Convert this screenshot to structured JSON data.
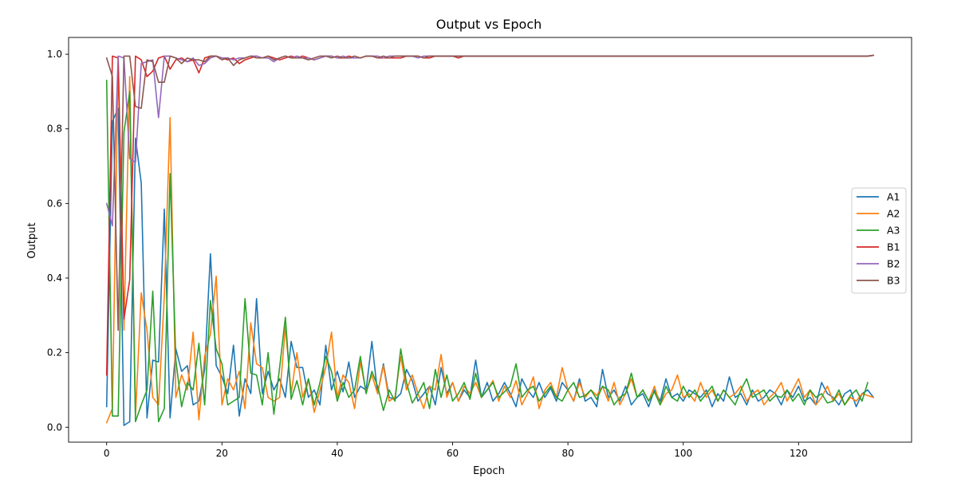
{
  "chart_data": {
    "type": "line",
    "title": "Output vs Epoch",
    "xlabel": "Epoch",
    "ylabel": "Output",
    "xlim": [
      -6.6,
      139.6
    ],
    "ylim": [
      -0.04,
      1.045
    ],
    "xticks": [
      0,
      20,
      40,
      60,
      80,
      100,
      120
    ],
    "yticks": [
      0.0,
      0.2,
      0.4,
      0.6,
      0.8,
      1.0
    ],
    "xtick_labels": [
      "0",
      "20",
      "40",
      "60",
      "80",
      "100",
      "120"
    ],
    "ytick_labels": [
      "0.0",
      "0.2",
      "0.4",
      "0.6",
      "0.8",
      "1.0"
    ],
    "grid": false,
    "legend_position": "center-right",
    "x_start": 0,
    "x_step": 1,
    "series": [
      {
        "name": "A1",
        "color": "#1f77b4",
        "values": [
          0.055,
          0.82,
          0.855,
          0.005,
          0.015,
          0.775,
          0.655,
          0.025,
          0.18,
          0.175,
          0.585,
          0.025,
          0.21,
          0.15,
          0.165,
          0.06,
          0.07,
          0.155,
          0.465,
          0.165,
          0.135,
          0.09,
          0.22,
          0.03,
          0.13,
          0.09,
          0.345,
          0.09,
          0.15,
          0.1,
          0.13,
          0.08,
          0.23,
          0.16,
          0.16,
          0.08,
          0.1,
          0.06,
          0.22,
          0.1,
          0.15,
          0.095,
          0.175,
          0.08,
          0.11,
          0.1,
          0.23,
          0.09,
          0.17,
          0.08,
          0.075,
          0.09,
          0.155,
          0.125,
          0.07,
          0.09,
          0.11,
          0.06,
          0.16,
          0.09,
          0.12,
          0.07,
          0.1,
          0.08,
          0.18,
          0.08,
          0.12,
          0.07,
          0.09,
          0.12,
          0.09,
          0.055,
          0.13,
          0.1,
          0.08,
          0.12,
          0.08,
          0.105,
          0.07,
          0.12,
          0.1,
          0.07,
          0.13,
          0.07,
          0.08,
          0.055,
          0.155,
          0.08,
          0.1,
          0.07,
          0.11,
          0.06,
          0.08,
          0.09,
          0.055,
          0.1,
          0.07,
          0.13,
          0.08,
          0.09,
          0.07,
          0.1,
          0.09,
          0.08,
          0.1,
          0.055,
          0.09,
          0.07,
          0.135,
          0.08,
          0.09,
          0.06,
          0.1,
          0.07,
          0.08,
          0.1,
          0.09,
          0.06,
          0.1,
          0.08,
          0.11,
          0.07,
          0.08,
          0.06,
          0.12,
          0.09,
          0.08,
          0.06,
          0.09,
          0.1,
          0.055,
          0.09,
          0.1,
          0.08
        ]
      },
      {
        "name": "A2",
        "color": "#ff7f0e",
        "values": [
          0.012,
          0.05,
          0.98,
          0.26,
          0.94,
          0.03,
          0.36,
          0.26,
          0.08,
          0.06,
          0.35,
          0.83,
          0.08,
          0.14,
          0.1,
          0.255,
          0.02,
          0.19,
          0.25,
          0.405,
          0.06,
          0.13,
          0.1,
          0.15,
          0.05,
          0.28,
          0.17,
          0.16,
          0.08,
          0.07,
          0.08,
          0.27,
          0.09,
          0.2,
          0.08,
          0.13,
          0.04,
          0.1,
          0.16,
          0.255,
          0.08,
          0.14,
          0.12,
          0.05,
          0.175,
          0.095,
          0.14,
          0.09,
          0.165,
          0.07,
          0.08,
          0.19,
          0.1,
          0.14,
          0.09,
          0.05,
          0.11,
          0.1,
          0.195,
          0.08,
          0.12,
          0.07,
          0.11,
          0.09,
          0.12,
          0.08,
          0.1,
          0.125,
          0.07,
          0.11,
          0.08,
          0.125,
          0.06,
          0.09,
          0.135,
          0.05,
          0.1,
          0.12,
          0.08,
          0.16,
          0.1,
          0.07,
          0.12,
          0.08,
          0.1,
          0.085,
          0.11,
          0.07,
          0.12,
          0.06,
          0.09,
          0.13,
          0.08,
          0.1,
          0.07,
          0.11,
          0.06,
          0.09,
          0.1,
          0.14,
          0.08,
          0.09,
          0.07,
          0.12,
          0.08,
          0.1,
          0.07,
          0.1,
          0.08,
          0.09,
          0.11,
          0.07,
          0.09,
          0.1,
          0.06,
          0.08,
          0.095,
          0.12,
          0.07,
          0.1,
          0.13,
          0.08,
          0.1,
          0.06,
          0.08,
          0.11,
          0.07,
          0.09,
          0.06,
          0.08,
          0.07,
          0.09,
          0.085,
          0.08
        ]
      },
      {
        "name": "A3",
        "color": "#2ca02c",
        "values": [
          0.93,
          0.03,
          0.03,
          0.79,
          0.9,
          0.015,
          0.06,
          0.1,
          0.365,
          0.015,
          0.05,
          0.68,
          0.18,
          0.055,
          0.12,
          0.1,
          0.225,
          0.06,
          0.34,
          0.21,
          0.17,
          0.06,
          0.07,
          0.08,
          0.345,
          0.145,
          0.14,
          0.06,
          0.2,
          0.035,
          0.16,
          0.295,
          0.075,
          0.125,
          0.06,
          0.13,
          0.06,
          0.12,
          0.19,
          0.15,
          0.07,
          0.12,
          0.08,
          0.1,
          0.19,
          0.09,
          0.15,
          0.11,
          0.045,
          0.1,
          0.07,
          0.21,
          0.12,
          0.065,
          0.09,
          0.12,
          0.05,
          0.155,
          0.08,
          0.14,
          0.07,
          0.09,
          0.12,
          0.075,
          0.145,
          0.08,
          0.1,
          0.12,
          0.08,
          0.095,
          0.11,
          0.17,
          0.08,
          0.1,
          0.11,
          0.07,
          0.09,
          0.11,
          0.08,
          0.07,
          0.1,
          0.12,
          0.08,
          0.085,
          0.1,
          0.075,
          0.11,
          0.1,
          0.06,
          0.08,
          0.09,
          0.145,
          0.08,
          0.1,
          0.07,
          0.095,
          0.06,
          0.11,
          0.08,
          0.07,
          0.11,
          0.08,
          0.1,
          0.07,
          0.09,
          0.11,
          0.07,
          0.1,
          0.08,
          0.06,
          0.1,
          0.13,
          0.08,
          0.09,
          0.1,
          0.07,
          0.085,
          0.08,
          0.1,
          0.07,
          0.09,
          0.06,
          0.1,
          0.08,
          0.09,
          0.065,
          0.07,
          0.1,
          0.06,
          0.085,
          0.1,
          0.07,
          0.12
        ]
      },
      {
        "name": "B1",
        "color": "#d62728",
        "values": [
          0.14,
          0.995,
          0.99,
          0.29,
          0.395,
          0.995,
          0.985,
          0.94,
          0.955,
          0.99,
          0.995,
          0.96,
          0.985,
          0.99,
          0.98,
          0.985,
          0.95,
          0.99,
          0.995,
          0.995,
          0.99,
          0.985,
          0.99,
          0.975,
          0.985,
          0.99,
          0.995,
          0.99,
          0.995,
          0.99,
          0.985,
          0.99,
          0.995,
          0.99,
          0.995,
          0.99,
          0.985,
          0.99,
          0.995,
          0.995,
          0.99,
          0.99,
          0.995,
          0.99,
          0.99,
          0.995,
          0.995,
          0.99,
          0.99,
          0.99,
          0.99,
          0.99,
          0.995,
          0.995,
          0.995,
          0.99,
          0.99,
          0.995,
          0.995,
          0.995,
          0.995,
          0.99,
          0.995,
          0.995,
          0.995,
          0.995,
          0.995,
          0.995,
          0.995,
          0.995,
          0.995,
          0.995,
          0.995,
          0.995,
          0.995,
          0.995,
          0.995,
          0.995,
          0.995,
          0.995,
          0.995,
          0.995,
          0.995,
          0.995,
          0.995,
          0.995,
          0.995,
          0.995,
          0.995,
          0.995,
          0.995,
          0.995,
          0.995,
          0.995,
          0.995,
          0.995,
          0.995,
          0.995,
          0.995,
          0.995,
          0.995,
          0.995,
          0.995,
          0.995,
          0.995,
          0.995,
          0.995,
          0.995,
          0.995,
          0.995,
          0.995,
          0.995,
          0.995,
          0.995,
          0.995,
          0.995,
          0.995,
          0.995,
          0.995,
          0.995,
          0.995,
          0.995,
          0.995,
          0.995,
          0.995,
          0.995,
          0.995,
          0.995,
          0.995,
          0.995,
          0.995,
          0.995,
          0.995,
          0.997
        ]
      },
      {
        "name": "B2",
        "color": "#9467bd",
        "values": [
          0.6,
          0.54,
          0.995,
          0.99,
          0.72,
          0.71,
          0.975,
          0.98,
          0.985,
          0.83,
          0.995,
          0.995,
          0.99,
          0.985,
          0.98,
          0.99,
          0.97,
          0.975,
          0.99,
          0.995,
          0.99,
          0.99,
          0.985,
          0.99,
          0.99,
          0.995,
          0.995,
          0.99,
          0.99,
          0.98,
          0.99,
          0.995,
          0.99,
          0.995,
          0.99,
          0.99,
          0.985,
          0.99,
          0.995,
          0.995,
          0.99,
          0.995,
          0.99,
          0.99,
          0.99,
          0.995,
          0.995,
          0.995,
          0.99,
          0.995,
          0.995,
          0.995,
          0.995,
          0.995,
          0.99,
          0.995,
          0.995,
          0.995,
          0.995,
          0.995,
          0.995,
          0.995,
          0.995,
          0.995,
          0.995,
          0.995,
          0.995,
          0.995,
          0.995,
          0.995,
          0.995,
          0.995,
          0.995,
          0.995,
          0.995,
          0.995,
          0.995,
          0.995,
          0.995,
          0.995,
          0.995,
          0.995,
          0.995,
          0.995,
          0.995,
          0.995,
          0.995,
          0.995,
          0.995,
          0.995,
          0.995,
          0.995,
          0.995,
          0.995,
          0.995,
          0.995,
          0.995,
          0.995,
          0.995,
          0.995,
          0.995,
          0.995,
          0.995,
          0.995,
          0.995,
          0.995,
          0.995,
          0.995,
          0.995,
          0.995,
          0.995,
          0.995,
          0.995,
          0.995,
          0.995,
          0.995,
          0.995,
          0.995,
          0.995,
          0.995,
          0.995,
          0.995,
          0.995,
          0.995,
          0.995,
          0.995,
          0.995,
          0.995,
          0.995,
          0.995,
          0.995,
          0.995,
          0.995,
          0.997
        ]
      },
      {
        "name": "B3",
        "color": "#8c564b",
        "values": [
          0.99,
          0.94,
          0.26,
          0.995,
          0.995,
          0.86,
          0.855,
          0.985,
          0.98,
          0.925,
          0.925,
          0.995,
          0.99,
          0.975,
          0.99,
          0.985,
          0.985,
          0.98,
          0.995,
          0.995,
          0.985,
          0.99,
          0.97,
          0.985,
          0.99,
          0.995,
          0.99,
          0.99,
          0.995,
          0.985,
          0.99,
          0.995,
          0.99,
          0.99,
          0.99,
          0.985,
          0.99,
          0.995,
          0.995,
          0.99,
          0.995,
          0.99,
          0.99,
          0.995,
          0.99,
          0.995,
          0.995,
          0.99,
          0.995,
          0.99,
          0.995,
          0.995,
          0.995,
          0.995,
          0.995,
          0.99,
          0.995,
          0.995,
          0.995,
          0.995,
          0.995,
          0.995,
          0.995,
          0.995,
          0.995,
          0.995,
          0.995,
          0.995,
          0.995,
          0.995,
          0.995,
          0.995,
          0.995,
          0.995,
          0.995,
          0.995,
          0.995,
          0.995,
          0.995,
          0.995,
          0.995,
          0.995,
          0.995,
          0.995,
          0.995,
          0.995,
          0.995,
          0.995,
          0.995,
          0.995,
          0.995,
          0.995,
          0.995,
          0.995,
          0.995,
          0.995,
          0.995,
          0.995,
          0.995,
          0.995,
          0.995,
          0.995,
          0.995,
          0.995,
          0.995,
          0.995,
          0.995,
          0.995,
          0.995,
          0.995,
          0.995,
          0.995,
          0.995,
          0.995,
          0.995,
          0.995,
          0.995,
          0.995,
          0.995,
          0.995,
          0.995,
          0.995,
          0.995,
          0.995,
          0.995,
          0.995,
          0.995,
          0.995,
          0.995,
          0.995,
          0.995,
          0.995,
          0.995,
          0.997
        ]
      }
    ]
  }
}
